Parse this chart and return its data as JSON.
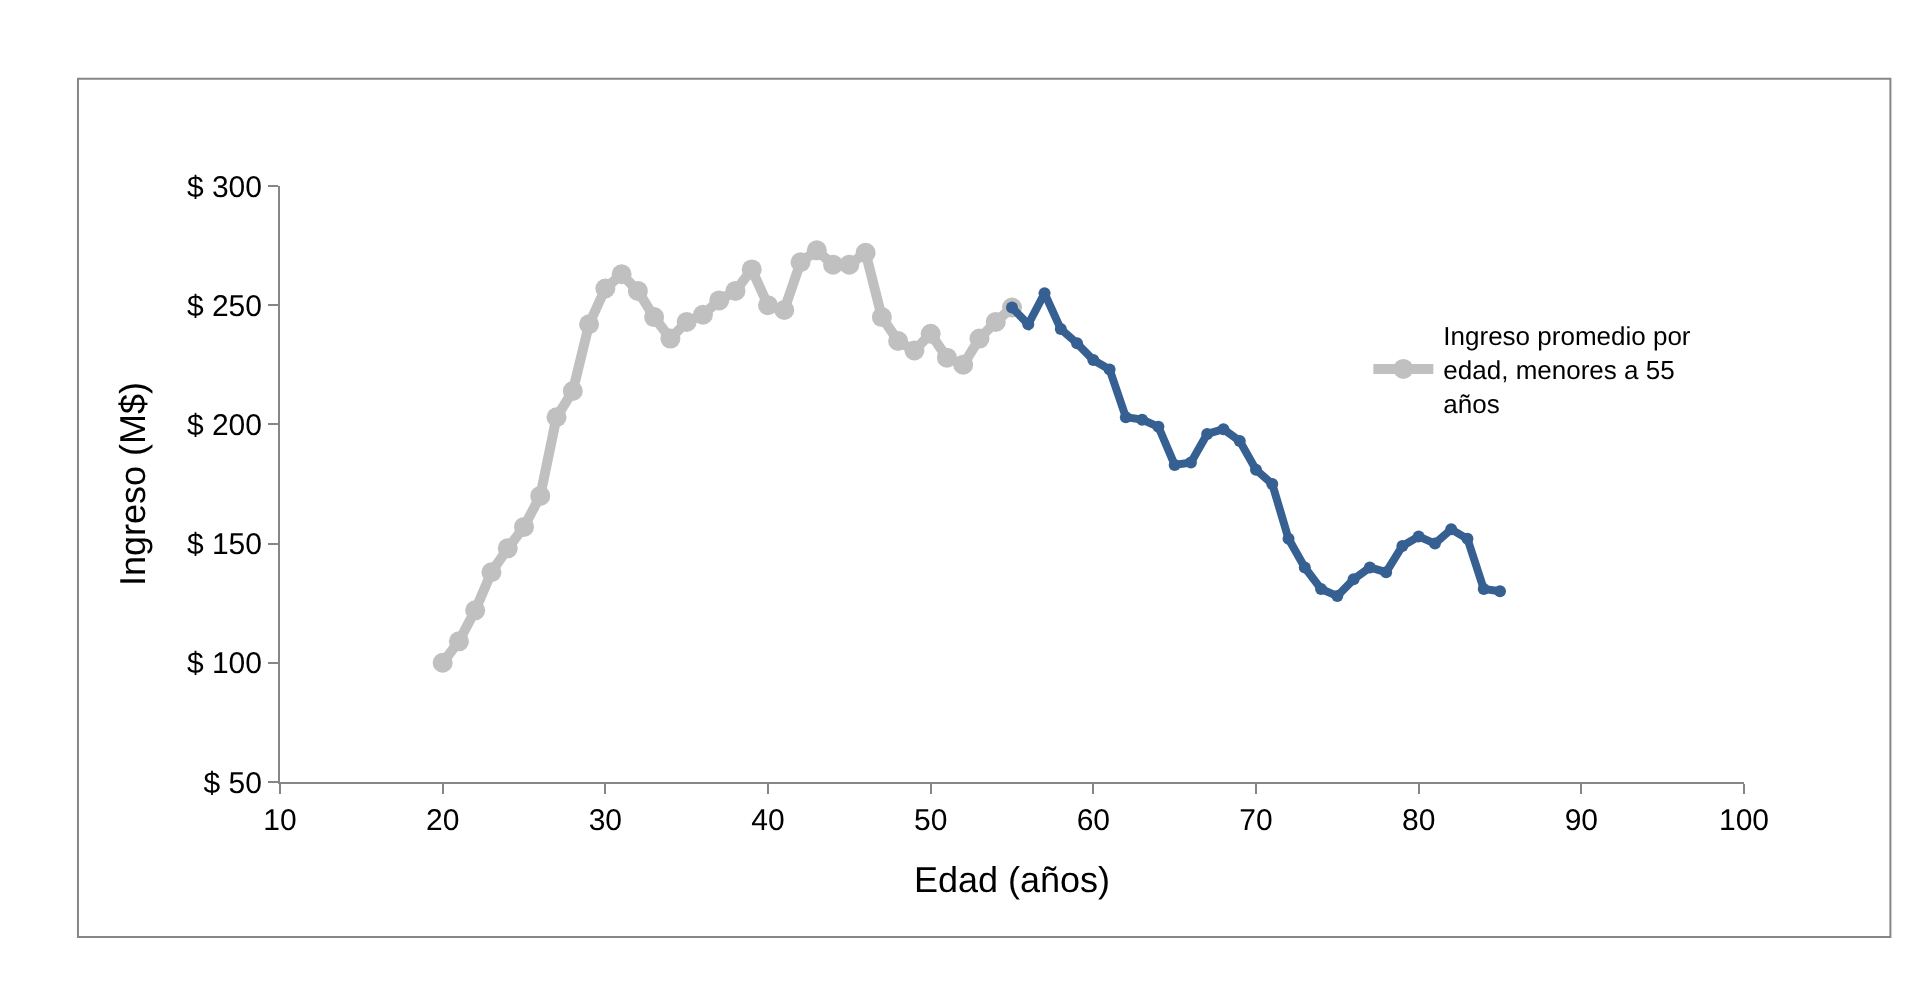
{
  "chart_data": {
    "type": "line",
    "xlabel": "Edad (años)",
    "ylabel": "Ingreso (M$)",
    "xlim": [
      10,
      100
    ],
    "xticks": [
      10,
      20,
      30,
      40,
      50,
      60,
      70,
      80,
      90,
      100
    ],
    "ylim": [
      50,
      300
    ],
    "yticks": [
      {
        "value": 50,
        "label": "$ 50"
      },
      {
        "value": 100,
        "label": "$ 100"
      },
      {
        "value": 150,
        "label": "$ 150"
      },
      {
        "value": 200,
        "label": "$ 200"
      },
      {
        "value": 250,
        "label": "$ 250"
      },
      {
        "value": 300,
        "label": "$ 300"
      }
    ],
    "grid": false,
    "legend": "right",
    "marker": "circle",
    "line_style": "solid",
    "series": [
      {
        "name": "Ingreso promedio por edad, menores a 55 años",
        "color": "#c0c0c0",
        "x": [
          20,
          21,
          22,
          23,
          24,
          25,
          26,
          27,
          28,
          29,
          30,
          31,
          32,
          33,
          34,
          35,
          36,
          37,
          38,
          39,
          40,
          41,
          42,
          43,
          44,
          45,
          46,
          47,
          48,
          49,
          50,
          51,
          52,
          53,
          54,
          55
        ],
        "values": [
          100,
          109,
          122,
          138,
          148,
          157,
          170,
          203,
          214,
          242,
          257,
          263,
          256,
          245,
          236,
          243,
          246,
          252,
          256,
          265,
          250,
          248,
          268,
          273,
          267,
          267,
          272,
          245,
          235,
          231,
          238,
          228,
          225,
          236,
          243,
          249
        ]
      },
      {
        "color": "#366092",
        "x": [
          55,
          56,
          57,
          58,
          59,
          60,
          61,
          62,
          63,
          64,
          65,
          66,
          67,
          68,
          69,
          70,
          71,
          72,
          73,
          74,
          75,
          76,
          77,
          78,
          79,
          80,
          81,
          82,
          83,
          84,
          85
        ],
        "values": [
          249,
          242,
          255,
          240,
          234,
          227,
          223,
          203,
          202,
          199,
          183,
          184,
          196,
          198,
          193,
          181,
          175,
          152,
          140,
          131,
          128,
          135,
          140,
          138,
          149,
          153,
          150,
          156,
          152,
          131,
          130
        ]
      }
    ]
  }
}
